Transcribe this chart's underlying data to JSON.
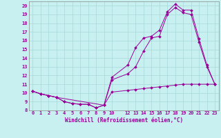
{
  "title": "",
  "xlabel": "Windchill (Refroidissement éolien,°C)",
  "ylabel": "",
  "bg_color": "#c8f0f0",
  "line_color": "#990099",
  "grid_color": "#a8d8d8",
  "xlim": [
    -0.5,
    23.5
  ],
  "ylim": [
    8.0,
    20.5
  ],
  "xticks": [
    0,
    1,
    2,
    3,
    4,
    5,
    6,
    7,
    8,
    9,
    10,
    12,
    13,
    14,
    15,
    16,
    17,
    18,
    19,
    20,
    21,
    22,
    23
  ],
  "yticks": [
    8,
    9,
    10,
    11,
    12,
    13,
    14,
    15,
    16,
    17,
    18,
    19,
    20
  ],
  "line1_x": [
    0,
    1,
    2,
    3,
    4,
    5,
    6,
    7,
    8,
    9,
    10,
    12,
    13,
    14,
    15,
    16,
    17,
    18,
    19,
    20,
    21,
    22,
    23
  ],
  "line1_y": [
    10.2,
    9.9,
    9.7,
    9.5,
    9.0,
    8.8,
    8.7,
    8.7,
    8.3,
    8.6,
    10.1,
    10.3,
    10.4,
    10.5,
    10.6,
    10.7,
    10.8,
    10.9,
    11.0,
    11.0,
    11.0,
    11.0,
    11.0
  ],
  "line2_x": [
    0,
    1,
    2,
    3,
    9,
    10,
    12,
    13,
    14,
    15,
    16,
    17,
    18,
    19,
    20,
    21,
    22,
    23
  ],
  "line2_y": [
    10.2,
    9.9,
    9.7,
    9.5,
    8.6,
    11.5,
    12.2,
    13.0,
    14.8,
    16.3,
    16.5,
    19.0,
    19.8,
    19.2,
    19.0,
    15.8,
    13.0,
    11.0
  ],
  "line3_x": [
    0,
    1,
    2,
    3,
    4,
    5,
    6,
    7,
    8,
    9,
    10,
    12,
    13,
    14,
    15,
    16,
    17,
    18,
    19,
    20,
    21,
    22,
    23
  ],
  "line3_y": [
    10.2,
    9.9,
    9.7,
    9.5,
    9.0,
    8.8,
    8.7,
    8.7,
    8.3,
    8.6,
    11.8,
    13.2,
    15.2,
    16.3,
    16.5,
    17.2,
    19.3,
    20.2,
    19.5,
    19.5,
    16.2,
    13.2,
    11.0
  ]
}
